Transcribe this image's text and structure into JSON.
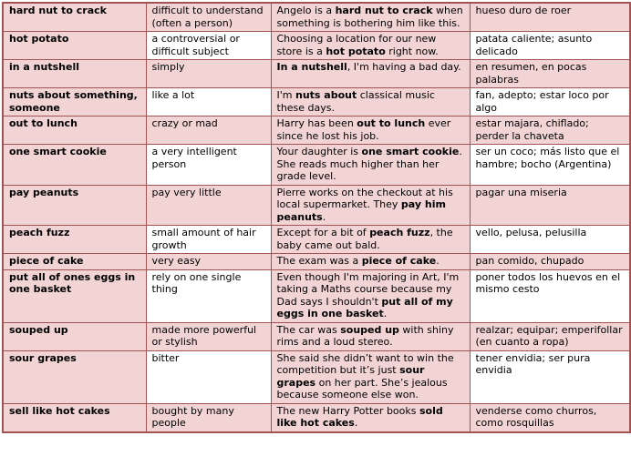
{
  "colors": {
    "border": "#a25454",
    "row_pink": "#f2d4d4",
    "row_alt_white": "#ffffff",
    "text": "#000000"
  },
  "table": {
    "columns": [
      "idiom",
      "definition",
      "example",
      "spanish_translation"
    ],
    "rows": [
      {
        "idiom": "hard nut to crack",
        "definition": "difficult to understand (often a person)",
        "example": "Angelo is a **hard nut to crack** when something is bothering him like this.",
        "translation": "hueso duro de roer"
      },
      {
        "idiom": "hot potato",
        "definition": "a controversial or difficult subject",
        "example": "Choosing a location for our new store is a **hot potato** right now.",
        "translation": "patata caliente; asunto delicado"
      },
      {
        "idiom": "in a nutshell",
        "definition": "simply",
        "example": "**In a nutshell**, I'm having a bad day.",
        "translation": "en resumen, en pocas palabras"
      },
      {
        "idiom": "nuts about something, someone",
        "definition": "like a lot",
        "example": "I'm **nuts about** classical music these days.",
        "translation": "fan, adepto; estar loco por algo"
      },
      {
        "idiom": "out to lunch",
        "definition": "crazy or mad",
        "example": "Harry has been **out to lunch** ever since he lost his job.",
        "translation": "estar majara, chiflado; perder la chaveta"
      },
      {
        "idiom": "one smart cookie",
        "definition": "a very intelligent person",
        "example": "Your daughter is **one smart cookie**. She reads much higher than her grade level.",
        "translation": "ser un coco; más listo que el hambre; bocho (Argentina)"
      },
      {
        "idiom": "pay peanuts",
        "definition": "pay very little",
        "example": "Pierre works on the checkout at his local supermarket. They **pay him peanuts**.",
        "translation": "pagar una miseria"
      },
      {
        "idiom": "peach fuzz",
        "definition": "small amount of hair growth",
        "example": "Except for a bit of **peach fuzz**, the baby came out bald.",
        "translation": "vello, pelusa, pelusilla"
      },
      {
        "idiom": "piece of cake",
        "definition": "very easy",
        "example": "The exam was a **piece of cake**.",
        "translation": "pan comido, chupado"
      },
      {
        "idiom": "put all of ones eggs in one basket",
        "definition": "rely on one single thing",
        "example": "Even though I'm majoring in Art, I'm taking a Maths course because my Dad says I shouldn't **put all of my eggs in one basket**.",
        "translation": "poner todos los huevos en el mismo cesto"
      },
      {
        "idiom": "souped up",
        "definition": "made more powerful or stylish",
        "example": "The car was **souped up** with shiny rims and a loud stereo.",
        "translation": "realzar; equipar; emperifollar (en cuanto a ropa)"
      },
      {
        "idiom": "sour grapes",
        "definition": "bitter",
        "example": "She said she didn’t want to win the competition but it’s just **sour grapes** on her part. She’s jealous because someone else won.",
        "translation": "tener envidia; ser pura envidia"
      },
      {
        "idiom": "sell like hot cakes",
        "definition": "bought by many people",
        "example": "The new Harry Potter books **sold like hot cakes**.",
        "translation": "venderse como churros, como rosquillas"
      }
    ]
  }
}
